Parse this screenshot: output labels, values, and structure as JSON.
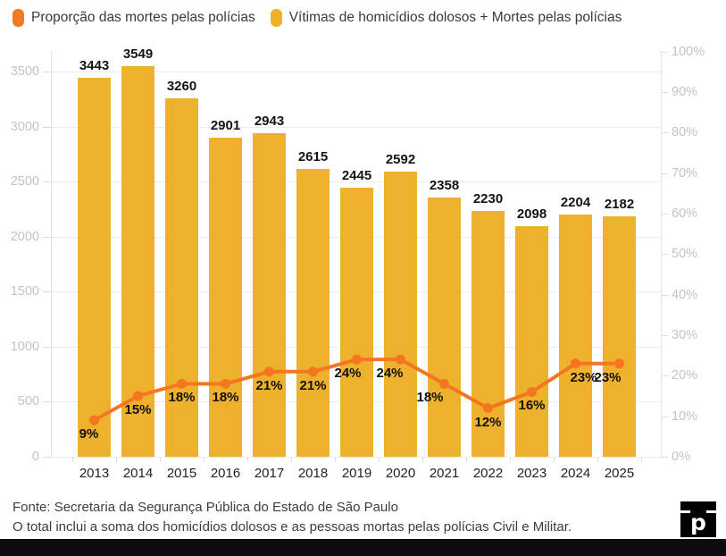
{
  "legend": {
    "items": [
      {
        "label": "Proporção das mortes pelas polícias",
        "color": "#f47a20"
      },
      {
        "label": "Vítimas de homicídios dolosos + Mortes pelas polícias",
        "color": "#ecb22a"
      }
    ]
  },
  "chart_data": {
    "type": "bar",
    "subtype": "column chart with line overlay on secondary percent axis",
    "categories": [
      "2013",
      "2014",
      "2015",
      "2016",
      "2017",
      "2018",
      "2019",
      "2020",
      "2021",
      "2022",
      "2023",
      "2024",
      "2025"
    ],
    "series": [
      {
        "name": "Vítimas de homicídios dolosos + Mortes pelas polícias",
        "type": "bar",
        "axis": "left",
        "color": "#edb12d",
        "values": [
          3443,
          3549,
          3260,
          2901,
          2943,
          2615,
          2445,
          2592,
          2358,
          2230,
          2098,
          2204,
          2182
        ]
      },
      {
        "name": "Proporção das mortes pelas polícias",
        "type": "line",
        "axis": "right",
        "color": "#f47620",
        "unit": "%",
        "values": [
          9,
          15,
          18,
          18,
          21,
          21,
          24,
          24,
          18,
          12,
          16,
          23,
          23
        ]
      }
    ],
    "left_axis": {
      "min": 0,
      "max": 3500,
      "tick_interval": 500,
      "tick_labels": [
        "0",
        "500",
        "1000",
        "1500",
        "2000",
        "2500",
        "3000",
        "3500"
      ]
    },
    "right_axis": {
      "min": 0,
      "max": 100,
      "tick_interval": 10,
      "tick_labels": [
        "0%",
        "10%",
        "20%",
        "30%",
        "40%",
        "50%",
        "60%",
        "70%",
        "80%",
        "90%",
        "100%"
      ]
    },
    "grid": true,
    "data_labels": true,
    "legend_position": "top-left"
  },
  "footer": {
    "source_line": "Fonte: Secretaria da Segurança Pública do Estado de São Paulo",
    "note_line": "O total inclui a soma dos homicídios dolosos e as pessoas mortas pelas polícias Civil e Militar."
  },
  "logo": {
    "glyph": "p"
  },
  "colors": {
    "bar": "#edb12d",
    "line": "#f47620",
    "grid": "#ececec",
    "axis_text": "#c3c3c3",
    "label_text": "#141414",
    "bottom_bar": "#0b0b10"
  }
}
